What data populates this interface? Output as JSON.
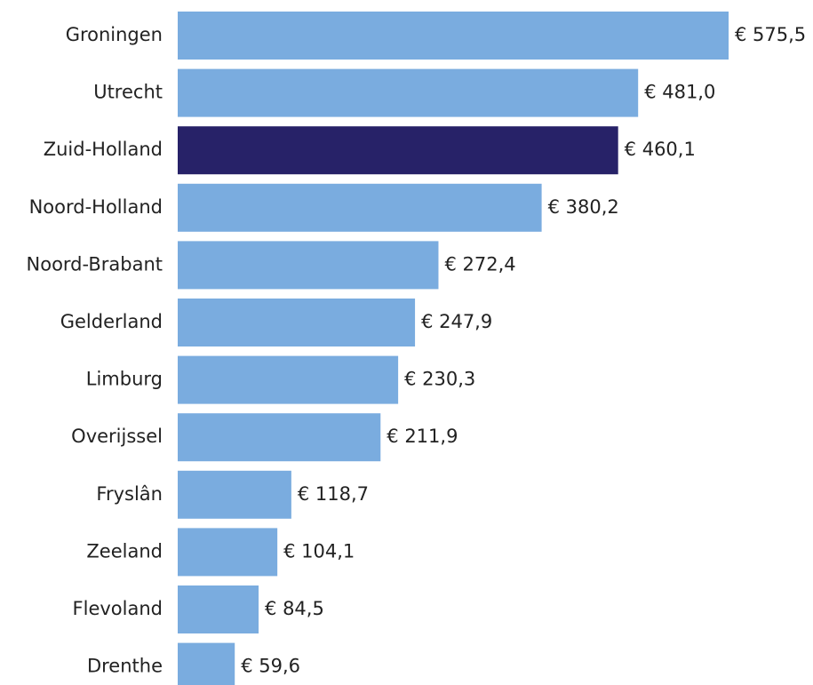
{
  "chart_data": {
    "type": "bar",
    "orientation": "horizontal",
    "categories": [
      "Groningen",
      "Utrecht",
      "Zuid-Holland",
      "Noord-Holland",
      "Noord-Brabant",
      "Gelderland",
      "Limburg",
      "Overijssel",
      "Fryslân",
      "Zeeland",
      "Flevoland",
      "Drenthe"
    ],
    "values": [
      575.5,
      481.0,
      460.1,
      380.2,
      272.4,
      247.9,
      230.3,
      211.9,
      118.7,
      104.1,
      84.5,
      59.6
    ],
    "value_labels": [
      "€ 575,5",
      "€ 481,0",
      "€ 460,1",
      "€ 380,2",
      "€ 272,4",
      "€ 247,9",
      "€ 230,3",
      "€ 211,9",
      "€ 118,7",
      "€ 104,1",
      "€ 84,5",
      "€ 59,6"
    ],
    "colors": [
      "#7aacdf",
      "#7aacdf",
      "#272268",
      "#7aacdf",
      "#7aacdf",
      "#7aacdf",
      "#7aacdf",
      "#7aacdf",
      "#7aacdf",
      "#7aacdf",
      "#7aacdf",
      "#7aacdf"
    ]
  }
}
